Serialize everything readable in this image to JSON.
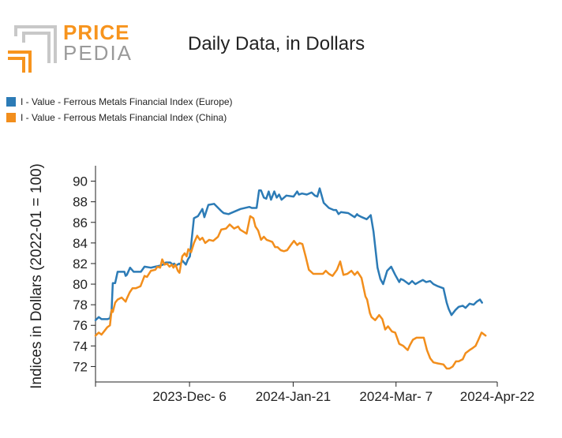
{
  "logo": {
    "line1": "PRICE",
    "line2": "PEDIA"
  },
  "chart_data": {
    "type": "line",
    "title": "Daily Data, in Dollars",
    "xlabel": "",
    "ylabel": "Indices in Dollars (2022-01 = 100)",
    "ylim": [
      70.5,
      91.5
    ],
    "yticks": [
      72,
      74,
      76,
      78,
      80,
      82,
      84,
      86,
      88,
      90
    ],
    "xlim": [
      0,
      100
    ],
    "xticks": [
      {
        "pos": 0,
        "label": ""
      },
      {
        "pos": 23.4,
        "label": "2023-Dec- 6"
      },
      {
        "pos": 49.2,
        "label": "2024-Jan-21"
      },
      {
        "pos": 74.8,
        "label": "2024-Mar- 7"
      },
      {
        "pos": 100,
        "label": "2024-Apr-22"
      }
    ],
    "legend_position": "top-left",
    "series": [
      {
        "name": "I - Value - Ferrous Metals Financial Index (Europe)",
        "color": "#2c7bb6",
        "x": [
          0,
          0.8,
          1.5,
          3,
          3.6,
          4,
          4.3,
          4.9,
          5.5,
          6.5,
          7.2,
          7.5,
          7.8,
          8.6,
          9.5,
          10.6,
          11.3,
          12.2,
          13.8,
          14.9,
          16.1,
          16.8,
          17.5,
          18.6,
          19.2,
          19.6,
          20,
          20.8,
          21.1,
          21.6,
          22.5,
          23,
          23.5,
          24.5,
          25.5,
          26.6,
          27.1,
          28.1,
          29.5,
          31.3,
          31.9,
          33.1,
          34.3,
          36.1,
          38.3,
          38.9,
          39.5,
          40.1,
          40.7,
          41.2,
          41.9,
          42.5,
          43.1,
          43.7,
          44.5,
          45.1,
          45.7,
          46.3,
          47.5,
          49.3,
          50.2,
          50.6,
          51.4,
          52.6,
          53.8,
          54.6,
          55.2,
          55.8,
          56.8,
          58.1,
          59.3,
          59.9,
          60.5,
          61.1,
          62.9,
          63.7,
          64.5,
          65.1,
          65.3,
          66.3,
          67.5,
          68.5,
          69.2,
          70.2,
          70.9,
          71.6,
          72.6,
          73.6,
          74.6,
          75.6,
          76,
          76.6,
          78,
          78.8,
          79.6,
          80.5,
          81.5,
          82.3,
          83.3,
          84.1,
          85.2,
          86.6,
          87.4,
          87.9,
          88.6,
          89.6,
          90.4,
          91.4,
          92.1,
          93.1,
          94.1,
          94.9,
          95.7,
          96.2
        ],
        "values": [
          76.5,
          76.8,
          76.6,
          76.6,
          76.7,
          77.5,
          80.1,
          80.1,
          81.2,
          81.2,
          81.2,
          80.8,
          80.9,
          81.6,
          81.2,
          81.2,
          81.2,
          81.7,
          81.6,
          81.7,
          81.8,
          81.9,
          82.1,
          82.1,
          81.9,
          82.0,
          81.8,
          82.0,
          81.9,
          82.3,
          81.9,
          82.4,
          82.7,
          86.4,
          86.6,
          87.3,
          86.5,
          87.7,
          87.8,
          87.1,
          86.9,
          86.8,
          87.0,
          87.3,
          87.5,
          87.4,
          87.4,
          87.4,
          89.1,
          89.1,
          88.4,
          88.3,
          89.0,
          88.2,
          89.0,
          88.4,
          88.7,
          88.2,
          88.6,
          88.5,
          89.0,
          88.7,
          88.8,
          88.7,
          88.9,
          88.6,
          88.5,
          89.3,
          87.9,
          87.4,
          87.2,
          87.2,
          86.8,
          87.0,
          86.9,
          86.7,
          86.5,
          86.8,
          86.7,
          86.5,
          86.3,
          86.7,
          85.1,
          81.6,
          80.5,
          80.0,
          81.3,
          81.7,
          80.9,
          80.2,
          80.5,
          80.4,
          80.0,
          80.3,
          80.0,
          80.2,
          80.4,
          80.2,
          80.3,
          80.0,
          79.8,
          79.6,
          78.2,
          77.6,
          77.0,
          77.5,
          77.8,
          77.9,
          77.7,
          78.1,
          78.0,
          78.3,
          78.5,
          78.2
        ]
      },
      {
        "name": "I - Value - Ferrous Metals Financial Index (China)",
        "color": "#f28e1c",
        "x": [
          0,
          0.8,
          1.5,
          2.3,
          2.9,
          3.6,
          4,
          4.3,
          4.9,
          5.5,
          6.5,
          7.5,
          7.8,
          8.5,
          9.2,
          10,
          10.6,
          11.2,
          12.2,
          12.8,
          13.8,
          14.9,
          15.4,
          16.1,
          16.6,
          17.2,
          17.8,
          18.4,
          19,
          19.4,
          19.9,
          20.5,
          20.9,
          21.6,
          22.2,
          22.7,
          23.1,
          23.8,
          24.5,
          25.3,
          26,
          26.6,
          27.3,
          28.3,
          29.3,
          30.5,
          31.3,
          32.5,
          33.4,
          34.5,
          35.5,
          36,
          36.8,
          37.6,
          38.5,
          39.3,
          39.8,
          40.5,
          41.2,
          41.9,
          42.6,
          43.3,
          44,
          44.7,
          45.3,
          46.1,
          46.9,
          47.7,
          48.6,
          49.4,
          50.2,
          50.8,
          51.5,
          52.3,
          53.1,
          54.2,
          55.2,
          56.6,
          57.3,
          58.1,
          59,
          60.1,
          60.9,
          61.7,
          62.7,
          63.7,
          64.5,
          65.2,
          66.2,
          67.2,
          67.6,
          68.3,
          68.7,
          69.6,
          70.6,
          71.4,
          72.1,
          72.8,
          73.8,
          74.6,
          75.6,
          76.6,
          77.7,
          78.3,
          79,
          79.9,
          80.9,
          81.7,
          82.5,
          83.3,
          84.1,
          85.2,
          86.6,
          87.4,
          88.1,
          88.9,
          89.7,
          90.4,
          91.4,
          92.1,
          93.1,
          93.9,
          94.6,
          95.3,
          96.1,
          97.1
        ],
        "values": [
          75.0,
          75.3,
          75.1,
          75.5,
          75.8,
          76.0,
          77.5,
          77.3,
          78.2,
          78.5,
          78.7,
          78.3,
          78.6,
          79.2,
          79.6,
          79.6,
          79.7,
          79.8,
          80.8,
          80.7,
          81.3,
          81.4,
          81.7,
          81.6,
          82.4,
          81.9,
          82.0,
          81.7,
          81.9,
          81.6,
          81.9,
          81.3,
          81.1,
          82.7,
          83.0,
          82.7,
          83.4,
          83.1,
          84.0,
          84.7,
          84.3,
          84.5,
          84.0,
          84.3,
          84.2,
          84.6,
          85.3,
          85.4,
          85.8,
          85.4,
          85.6,
          85.3,
          85.1,
          84.9,
          86.6,
          86.4,
          85.6,
          85.2,
          84.3,
          84.6,
          84.3,
          84.2,
          84.1,
          83.6,
          83.6,
          83.3,
          83.2,
          83.3,
          83.8,
          84.2,
          83.8,
          84.0,
          83.9,
          82.7,
          81.4,
          81.0,
          81.0,
          81.0,
          81.3,
          81.0,
          80.8,
          81.4,
          82.2,
          80.9,
          81.0,
          81.3,
          80.9,
          81.2,
          80.6,
          78.8,
          78.5,
          77.2,
          76.8,
          76.5,
          77.0,
          76.6,
          75.6,
          75.9,
          75.4,
          75.3,
          74.2,
          74.0,
          73.6,
          74.1,
          74.6,
          74.8,
          74.8,
          74.8,
          73.6,
          72.8,
          72.4,
          72.3,
          72.2,
          71.8,
          71.8,
          72.0,
          72.5,
          72.5,
          72.7,
          73.3,
          73.6,
          73.8,
          74.0,
          74.6,
          75.3,
          75.0
        ]
      }
    ]
  }
}
